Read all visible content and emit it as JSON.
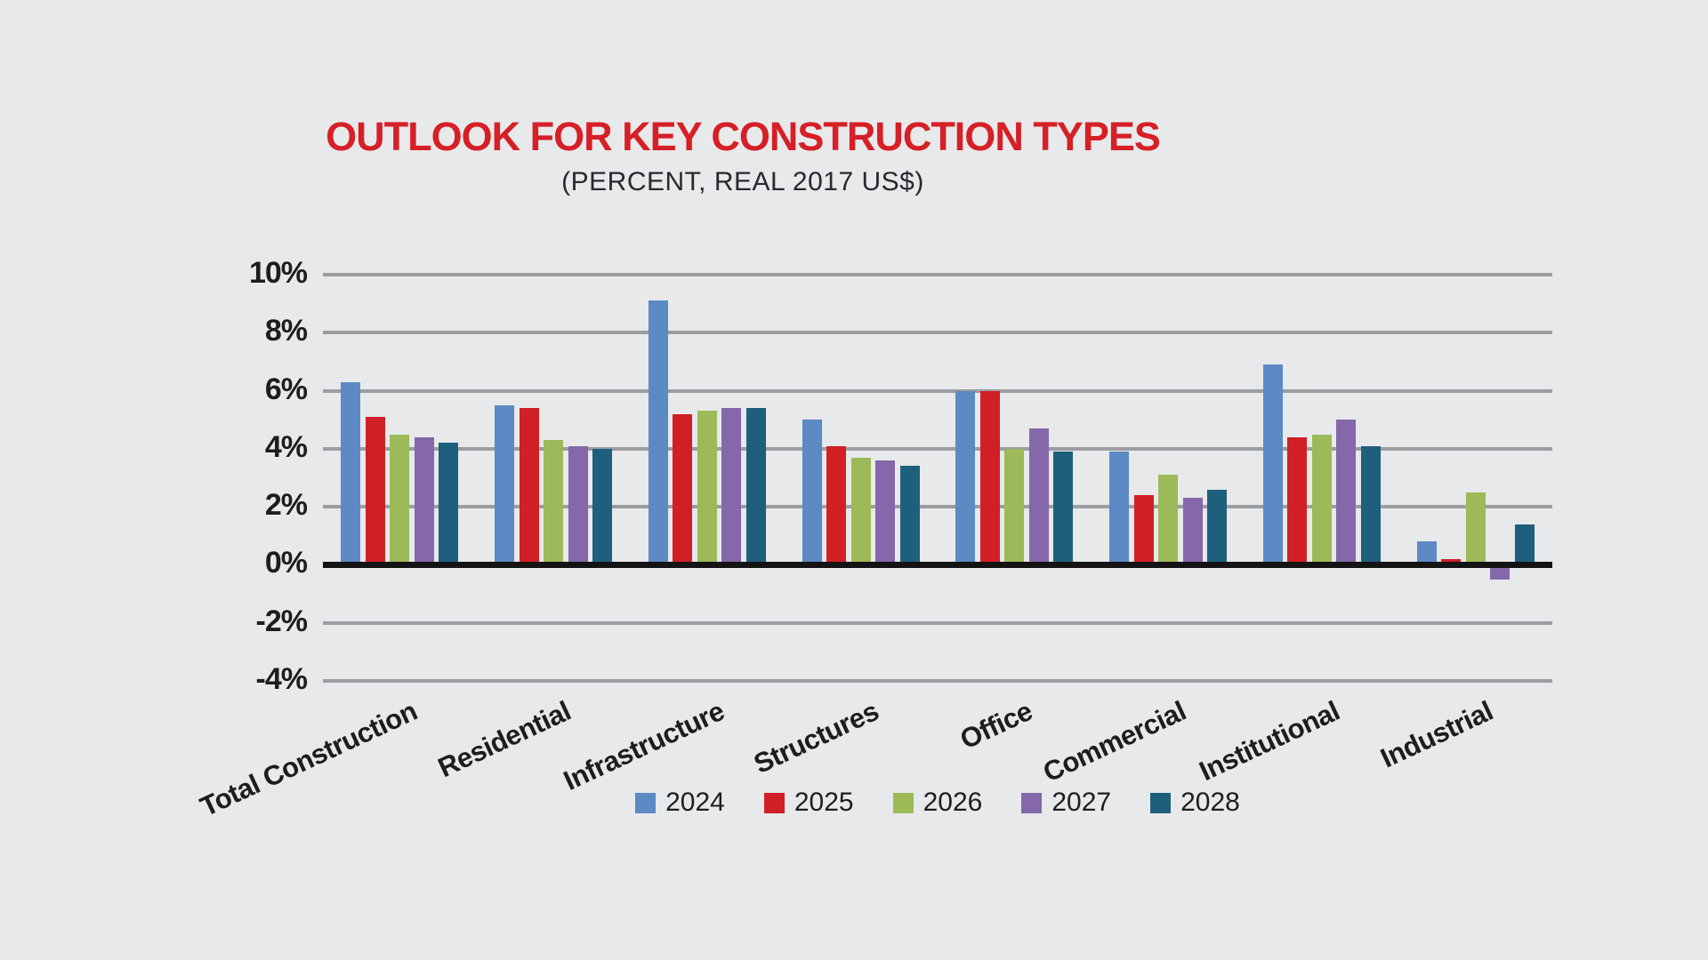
{
  "page": {
    "background_color": "#e8e9ea"
  },
  "chart_data": {
    "type": "bar",
    "title": "OUTLOOK FOR KEY CONSTRUCTION TYPES",
    "subtitle": "(PERCENT, REAL 2017 US$)",
    "title_color": "#d61f26",
    "categories": [
      "Total Construction",
      "Residential",
      "Infrastructure",
      "Structures",
      "Office",
      "Commercial",
      "Institutional",
      "Industrial"
    ],
    "series": [
      {
        "name": "2024",
        "color": "#5b8ac5",
        "values": [
          6.3,
          5.5,
          9.1,
          5.0,
          6.0,
          3.9,
          6.9,
          0.8
        ]
      },
      {
        "name": "2025",
        "color": "#d11f26",
        "values": [
          5.1,
          5.4,
          5.2,
          4.1,
          6.0,
          2.4,
          4.4,
          0.2
        ]
      },
      {
        "name": "2026",
        "color": "#9cba58",
        "values": [
          4.5,
          4.3,
          5.3,
          3.7,
          4.0,
          3.1,
          4.5,
          2.5
        ]
      },
      {
        "name": "2027",
        "color": "#8468a9",
        "values": [
          4.4,
          4.1,
          5.4,
          3.6,
          4.7,
          2.3,
          5.0,
          -0.5
        ]
      },
      {
        "name": "2028",
        "color": "#1e5f7e",
        "values": [
          4.2,
          4.0,
          5.4,
          3.4,
          3.9,
          2.6,
          4.1,
          1.4
        ]
      }
    ],
    "xlabel": "",
    "ylabel": "",
    "ylim": [
      -4,
      10
    ],
    "ytick_step": 2,
    "ytick_labels": [
      "10%",
      "8%",
      "6%",
      "4%",
      "2%",
      "0%",
      "-2%",
      "-4%"
    ],
    "grid": true,
    "gridline_color": "#9c9da0",
    "zero_axis_color": "#141414",
    "tick_label_color": "#1d1d1f",
    "legend_position": "bottom",
    "legend_entries": [
      "2024",
      "2025",
      "2026",
      "2027",
      "2028"
    ]
  }
}
